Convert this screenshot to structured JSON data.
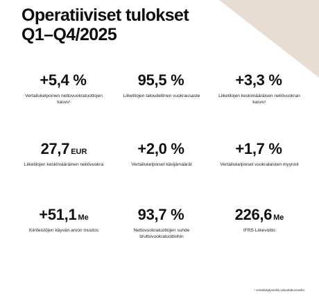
{
  "title": {
    "line1": "Operatiiviset tulokset",
    "line2": "Q1–Q4/2025"
  },
  "metrics": [
    {
      "value": "+5,4 %",
      "unit": "",
      "label": "Vertailukelpoinen nettovuokratuottojen kasvu¹"
    },
    {
      "value": "95,5 %",
      "unit": "",
      "label": "Liiketilojen taloudellinen vuokrausaste"
    },
    {
      "value": "+3,3 %",
      "unit": "",
      "label": "Liiketilojen keskimääräisen neliövuokran kasvu¹"
    },
    {
      "value": "27,7",
      "unit": "EUR",
      "label": "Liiketilojen keskimääräinen neliövuokra"
    },
    {
      "value": "+2,0 %",
      "unit": "",
      "label": "Vertailukelpoiset kävijämäärät"
    },
    {
      "value": "+1,7 %",
      "unit": "",
      "label": "Vertailukelpoiset vuokralaisten myynnit"
    },
    {
      "value": "+51,1",
      "unit": "Me",
      "label": "Kiinteistöjen käyvän arvon muutos"
    },
    {
      "value": "93,7 %",
      "unit": "",
      "label": "Nettovuokratuottojen suhde bruttovuokratuottoihin"
    },
    {
      "value": "226,6",
      "unit": "Me",
      "label": "IFRS Liikevoitto"
    }
  ],
  "footnote": "¹ vertailukelpoisilla valuuttakursseilla.",
  "colors": {
    "background": "#e8ddd2",
    "panel": "#ffffff",
    "text": "#0d0d0d"
  }
}
